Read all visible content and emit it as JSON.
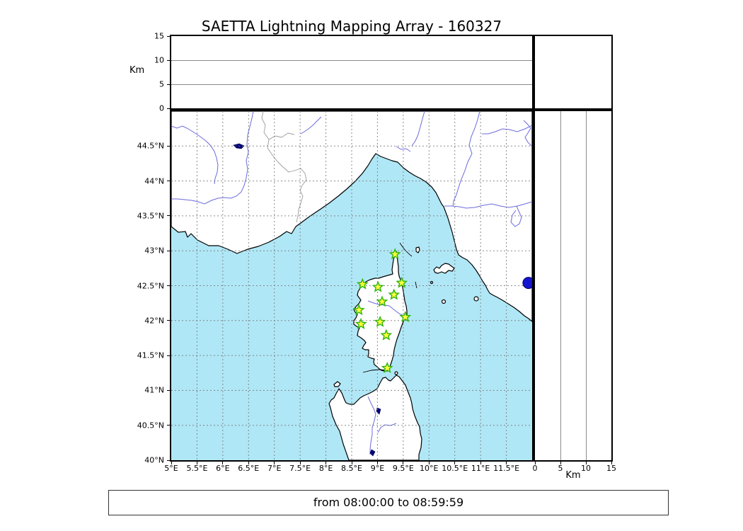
{
  "title": "SAETTA Lightning Mapping Array - 160327",
  "time_label": "from 08:00:00 to 08:59:59",
  "axes": {
    "km_label": "Km",
    "alt_tick_labels": [
      "0",
      "5",
      "10",
      "15"
    ],
    "lon_tick_labels": [
      "5°E",
      "5.5°E",
      "6°E",
      "6.5°E",
      "7°E",
      "7.5°E",
      "8°E",
      "8.5°E",
      "9°E",
      "9.5°E",
      "10°E",
      "10.5°E",
      "11°E",
      "11.5°E"
    ],
    "lat_tick_labels": [
      "40°N",
      "40.5°N",
      "41°N",
      "41.5°N",
      "42°N",
      "42.5°N",
      "43°N",
      "43.5°N",
      "44°N",
      "44.5°N"
    ]
  },
  "colors": {
    "sea": "#b0e7f6",
    "land": "#ffffff",
    "coastline": "#000000",
    "river": "#6b6bdf",
    "country_border": "#9c9c9c",
    "graticule": "#777777",
    "panel_grid": "#8c8c8c",
    "lake": "#000080",
    "station_fill": "#fdfd40",
    "station_edge": "#2fb40a",
    "flash_fill": "#1515cf"
  },
  "chart_data": {
    "type": "scatter",
    "title": "SAETTA Lightning Mapping Array - 160327",
    "time_window": "from 08:00:00 to 08:59:59",
    "map_extent": {
      "lon_min": 5,
      "lon_max": 12,
      "lat_min": 40,
      "lat_max": 45
    },
    "grid_step_deg": 0.5,
    "grid_style": "dashed",
    "altitude_axis": {
      "label": "Km",
      "range_km": [
        0,
        15
      ],
      "ticks": [
        0,
        5,
        10,
        15
      ],
      "gridlines_km": [
        5,
        10
      ]
    },
    "lon_ticks": [
      5,
      5.5,
      6,
      6.5,
      7,
      7.5,
      8,
      8.5,
      9,
      9.5,
      10,
      10.5,
      11,
      11.5
    ],
    "lat_ticks": [
      40,
      40.5,
      41,
      41.5,
      42,
      42.5,
      43,
      43.5,
      44,
      44.5
    ],
    "stations_lon_lat": [
      [
        9.34,
        42.95
      ],
      [
        8.71,
        42.52
      ],
      [
        9.01,
        42.48
      ],
      [
        9.47,
        42.54
      ],
      [
        9.32,
        42.37
      ],
      [
        9.09,
        42.27
      ],
      [
        8.64,
        42.15
      ],
      [
        9.54,
        42.05
      ],
      [
        9.05,
        41.98
      ],
      [
        8.68,
        41.95
      ],
      [
        9.17,
        41.79
      ],
      [
        9.19,
        41.32
      ]
    ],
    "station_marker": {
      "shape": "star",
      "fill": "#fdfd40",
      "edge": "#2fb40a"
    },
    "flash_points_lon_lat": [
      [
        11.93,
        42.54
      ]
    ],
    "flash_marker": {
      "shape": "circle",
      "fill": "#1515cf",
      "edge": "#000066"
    }
  }
}
